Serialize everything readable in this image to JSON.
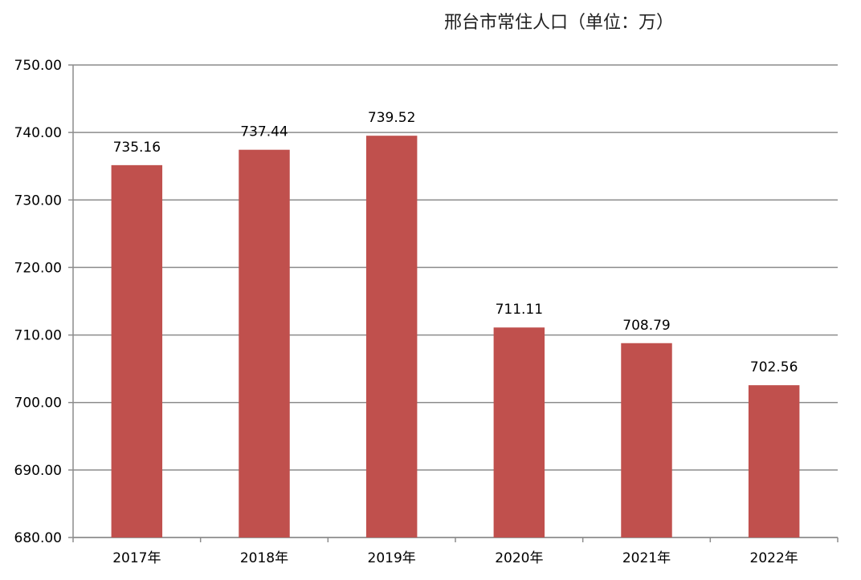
{
  "chart_data": {
    "type": "bar",
    "title": "邢台市常住人口（单位：万）",
    "xlabel": "",
    "ylabel": "",
    "categories": [
      "2017年",
      "2018年",
      "2019年",
      "2020年",
      "2021年",
      "2022年"
    ],
    "values": [
      735.16,
      737.44,
      739.52,
      711.11,
      708.79,
      702.56
    ],
    "data_labels": [
      "735.16",
      "737.44",
      "739.52",
      "711.11",
      "708.79",
      "702.56"
    ],
    "ylim": [
      680,
      750
    ],
    "yticks": [
      680,
      690,
      700,
      710,
      720,
      730,
      740,
      750
    ],
    "ytick_labels": [
      "680.00",
      "690.00",
      "700.00",
      "710.00",
      "720.00",
      "730.00",
      "740.00",
      "750.00"
    ],
    "grid": true,
    "legend": "none",
    "colors": {
      "bar": "#C0504D",
      "grid": "#8c8c8c",
      "axis": "#8c8c8c"
    }
  }
}
